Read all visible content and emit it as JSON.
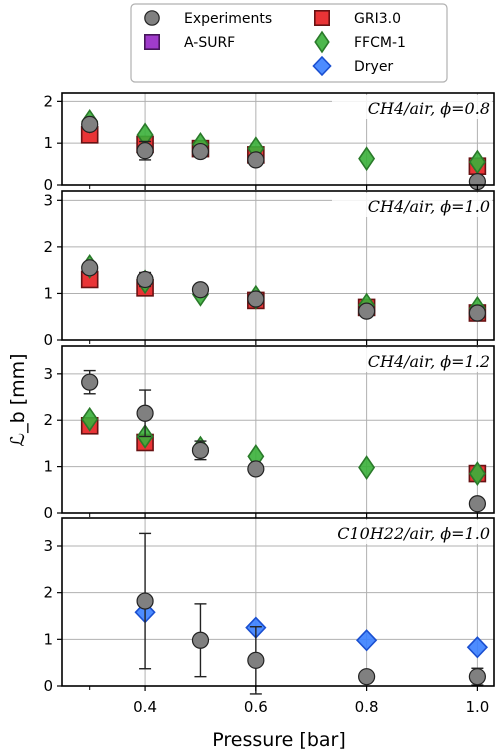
{
  "chart_data": {
    "type": "scatter",
    "xlabel": "Pressure  [bar]",
    "ylabel": "ℒ_b [mm]",
    "xlim": [
      0.25,
      1.03
    ],
    "xticks": [
      0.4,
      0.6,
      0.8,
      1.0
    ],
    "xticklabels": [
      "0.4",
      "0.6",
      "0.8",
      "1.0"
    ],
    "grid": true,
    "legend": {
      "placement": "top-center",
      "entries": [
        {
          "name": "Experiments",
          "marker": "circle",
          "color": "#808080"
        },
        {
          "name": "GRI3.0",
          "marker": "square",
          "color": "#e8292b"
        },
        {
          "name": "A-SURF",
          "marker": "square",
          "color": "#9b30c8"
        },
        {
          "name": "FFCM-1",
          "marker": "diamond",
          "color": "#3ab03a"
        },
        {
          "name": "Dryer",
          "marker": "diamond",
          "color": "#3a7fff"
        }
      ]
    },
    "panels": [
      {
        "title": "CH4/air, ϕ=0.8",
        "ylim": [
          0,
          2.2
        ],
        "yticks": [
          0,
          1,
          2
        ],
        "series": [
          {
            "name": "GRI3.0",
            "x": [
              0.3,
              0.4,
              0.5,
              0.6,
              1.0
            ],
            "y": [
              1.2,
              0.97,
              0.87,
              0.72,
              0.45
            ]
          },
          {
            "name": "FFCM-1",
            "x": [
              0.3,
              0.4,
              0.5,
              0.6,
              0.8,
              1.0
            ],
            "y": [
              1.52,
              1.2,
              0.97,
              0.87,
              0.63,
              0.55
            ]
          },
          {
            "name": "Experiments",
            "x": [
              0.3,
              0.4,
              0.5,
              0.6,
              1.0
            ],
            "y": [
              1.45,
              0.82,
              0.8,
              0.6,
              0.08
            ],
            "err": [
              0.1,
              0.22,
              0.12,
              0.1,
              0.05
            ]
          }
        ]
      },
      {
        "title": "CH4/air, ϕ=1.0",
        "ylim": [
          0,
          3.2
        ],
        "yticks": [
          0,
          1,
          2,
          3
        ],
        "series": [
          {
            "name": "GRI3.0",
            "x": [
              0.3,
              0.4,
              0.6,
              0.8,
              1.0
            ],
            "y": [
              1.3,
              1.12,
              0.85,
              0.7,
              0.58
            ]
          },
          {
            "name": "FFCM-1",
            "x": [
              0.3,
              0.4,
              0.5,
              0.6,
              0.8,
              1.0
            ],
            "y": [
              1.58,
              1.25,
              0.98,
              0.92,
              0.75,
              0.68
            ]
          },
          {
            "name": "Experiments",
            "x": [
              0.3,
              0.4,
              0.5,
              0.6,
              0.8,
              1.0
            ],
            "y": [
              1.55,
              1.3,
              1.08,
              0.88,
              0.62,
              0.58
            ],
            "err": [
              0.1,
              0.15,
              0.1,
              0.08,
              0.05,
              0.05
            ]
          }
        ]
      },
      {
        "title": "CH4/air, ϕ=1.2",
        "ylim": [
          0,
          3.6
        ],
        "yticks": [
          0,
          1,
          2,
          3
        ],
        "series": [
          {
            "name": "GRI3.0",
            "x": [
              0.3,
              0.4,
              1.0
            ],
            "y": [
              1.88,
              1.52,
              0.85
            ]
          },
          {
            "name": "FFCM-1",
            "x": [
              0.3,
              0.4,
              0.5,
              0.6,
              0.8,
              1.0
            ],
            "y": [
              2.02,
              1.65,
              1.4,
              1.22,
              0.98,
              0.85
            ]
          },
          {
            "name": "Experiments",
            "x": [
              0.3,
              0.4,
              0.5,
              0.6,
              1.0
            ],
            "y": [
              2.82,
              2.15,
              1.35,
              0.95,
              0.2
            ],
            "err": [
              0.25,
              0.5,
              0.2,
              0.1,
              0.05
            ]
          }
        ]
      },
      {
        "title": "C10H22/air, ϕ=1.0",
        "ylim": [
          0,
          3.6
        ],
        "yticks": [
          0,
          1,
          2,
          3
        ],
        "series": [
          {
            "name": "Dryer",
            "x": [
              0.4,
              0.6,
              0.8,
              1.0
            ],
            "y": [
              1.58,
              1.25,
              0.98,
              0.83
            ]
          },
          {
            "name": "Experiments",
            "x": [
              0.4,
              0.5,
              0.6,
              0.8,
              1.0
            ],
            "y": [
              1.82,
              0.98,
              0.55,
              0.2,
              0.2
            ],
            "err": [
              1.45,
              0.78,
              0.72,
              0.05,
              0.18
            ]
          }
        ]
      }
    ]
  }
}
